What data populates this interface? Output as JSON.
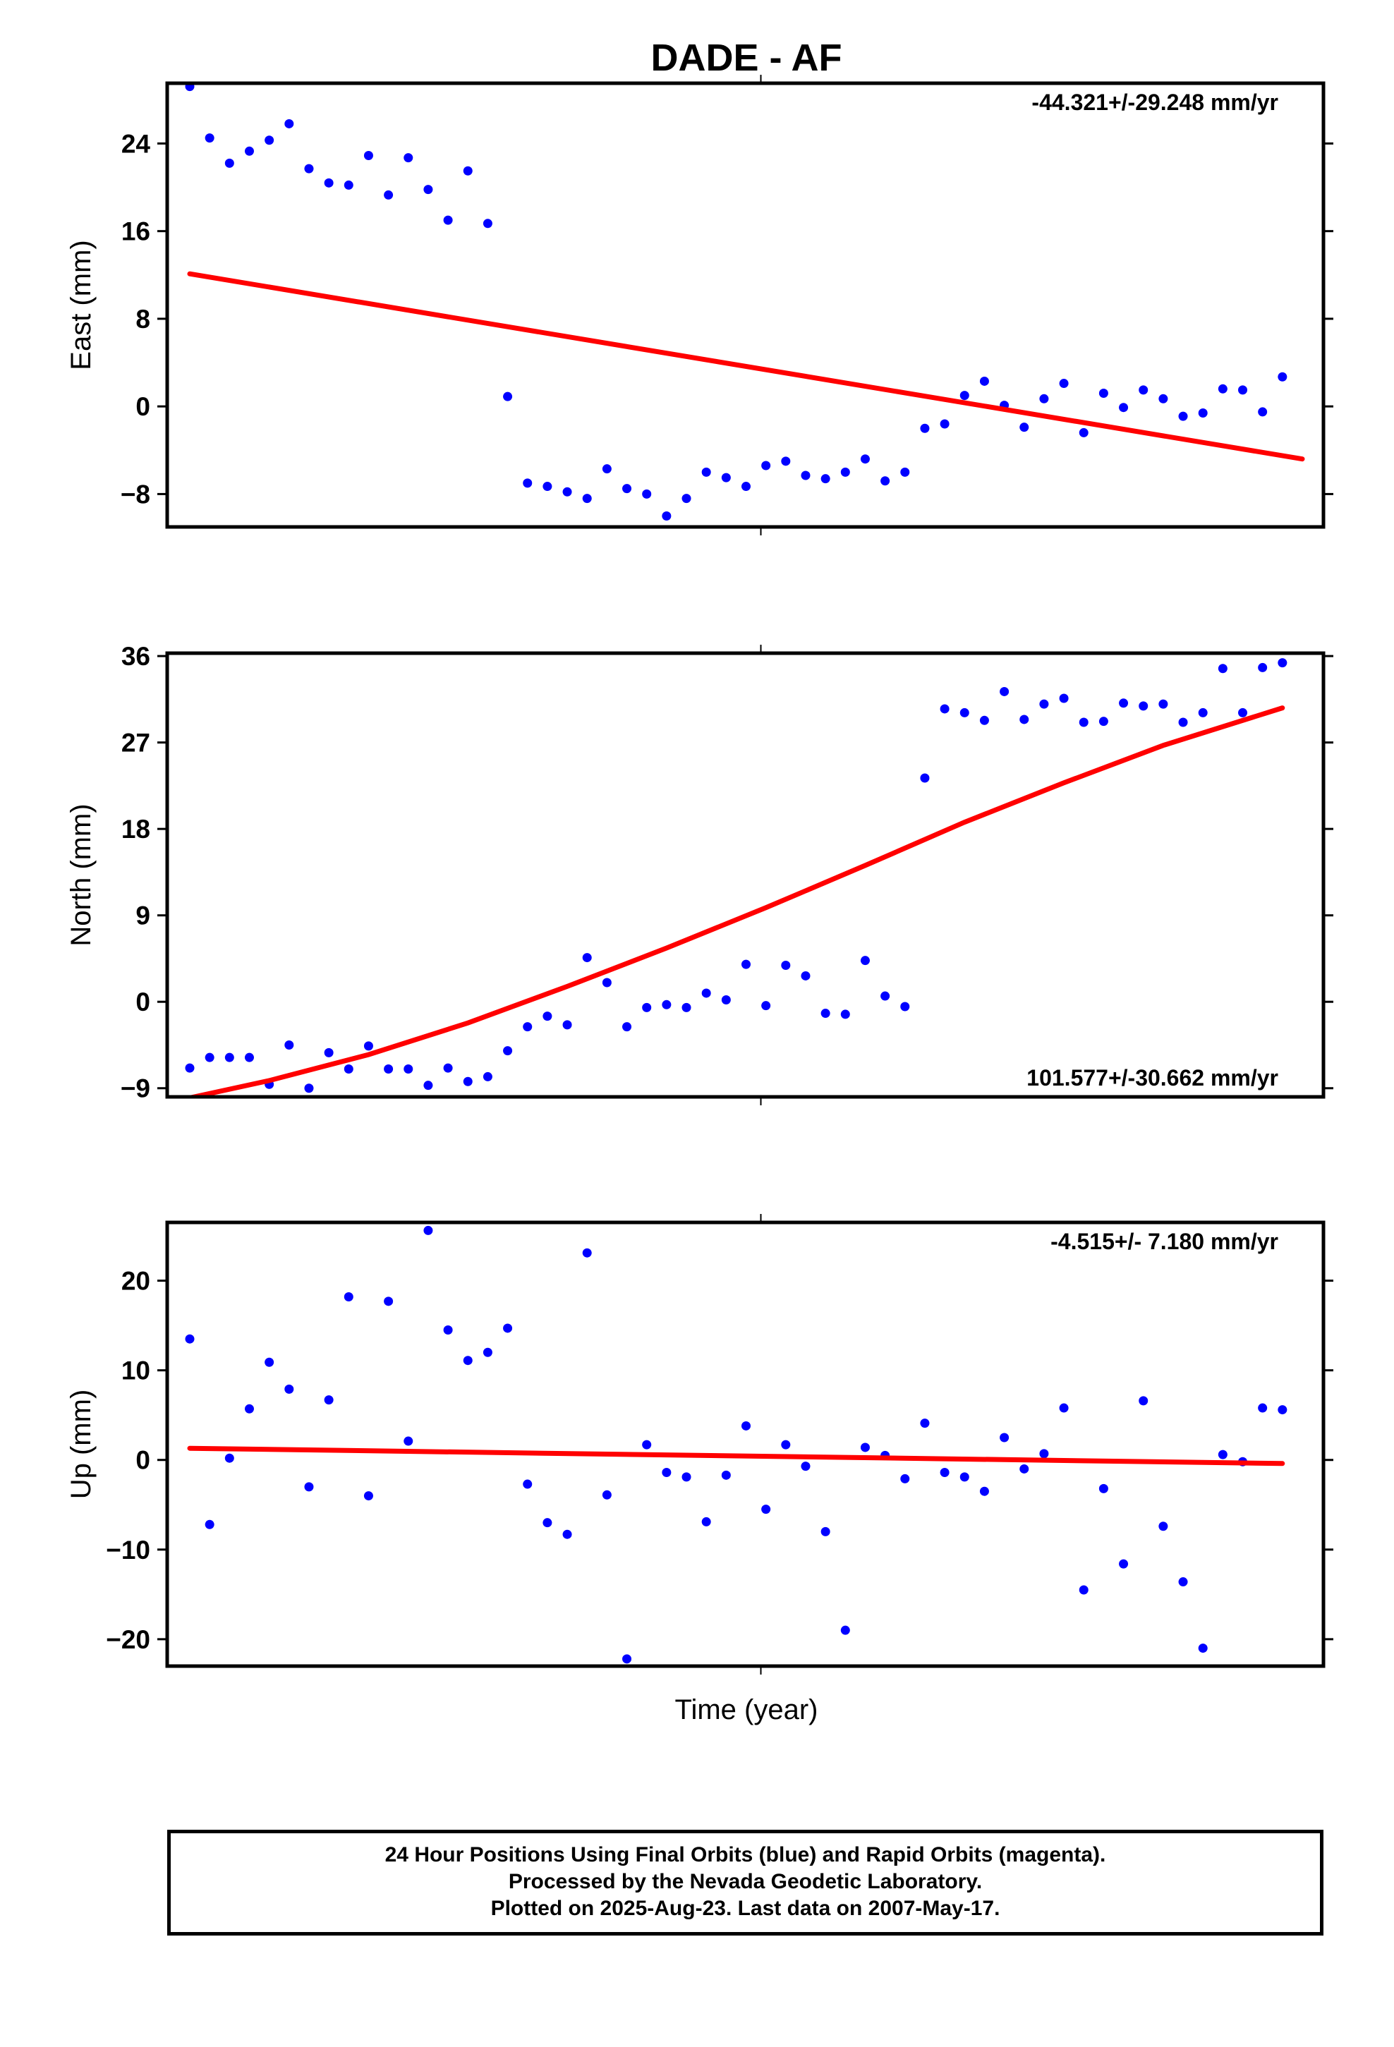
{
  "title": "DADE - AF",
  "x_axis_label": "Time (year)",
  "colors": {
    "points": "#0000ff",
    "fit": "#ff0000",
    "frame": "#000000"
  },
  "footer": {
    "line1": "24 Hour Positions Using Final Orbits (blue) and Rapid Orbits (magenta).",
    "line2": "Processed by the Nevada Geodetic Laboratory.",
    "line3": "Plotted on 2025-Aug-23. Last data on 2007-May-17."
  },
  "chart_data": [
    {
      "type": "scatter",
      "ylabel": "East (mm)",
      "rate_label": "-44.321+/-29.248 mm/yr",
      "rate_position": "top-right",
      "ylim": [
        -11,
        29.5
      ],
      "yticks": [
        -8,
        0,
        8,
        16,
        24
      ],
      "ytick_labels": [
        "−8",
        "0",
        "8",
        "16",
        "24"
      ],
      "x_index": [
        1,
        57
      ],
      "points": [
        [
          1,
          29.2
        ],
        [
          2,
          24.5
        ],
        [
          3,
          22.2
        ],
        [
          4,
          23.3
        ],
        [
          5,
          24.3
        ],
        [
          6,
          25.8
        ],
        [
          7,
          21.7
        ],
        [
          8,
          20.4
        ],
        [
          9,
          20.2
        ],
        [
          10,
          22.9
        ],
        [
          11,
          19.3
        ],
        [
          12,
          22.7
        ],
        [
          13,
          19.8
        ],
        [
          14,
          17
        ],
        [
          15,
          21.5
        ],
        [
          16,
          16.7
        ],
        [
          17,
          0.9
        ],
        [
          18,
          -7
        ],
        [
          19,
          -7.3
        ],
        [
          20,
          -7.8
        ],
        [
          21,
          -8.4
        ],
        [
          22,
          -5.7
        ],
        [
          23,
          -7.5
        ],
        [
          24,
          -8
        ],
        [
          25,
          -10
        ],
        [
          26,
          -8.4
        ],
        [
          27,
          -6
        ],
        [
          28,
          -6.5
        ],
        [
          29,
          -7.3
        ],
        [
          30,
          -5.4
        ],
        [
          31,
          -5
        ],
        [
          32,
          -6.3
        ],
        [
          33,
          -6.6
        ],
        [
          34,
          -6
        ],
        [
          35,
          -4.8
        ],
        [
          36,
          -6.8
        ],
        [
          37,
          -6
        ],
        [
          38,
          -2
        ],
        [
          39,
          -1.6
        ],
        [
          40,
          1
        ],
        [
          41,
          2.3
        ],
        [
          42,
          0.1
        ],
        [
          43,
          -1.9
        ],
        [
          44,
          0.7
        ],
        [
          45,
          2.1
        ],
        [
          46,
          -2.4
        ],
        [
          47,
          1.2
        ],
        [
          48,
          -0.1
        ],
        [
          49,
          1.5
        ],
        [
          50,
          0.7
        ],
        [
          51,
          -0.9
        ],
        [
          52,
          -0.6
        ],
        [
          53,
          1.6
        ],
        [
          54,
          1.5
        ],
        [
          55,
          -0.5
        ],
        [
          56,
          2.7
        ]
      ],
      "fit_line": [
        [
          1,
          12.1
        ],
        [
          57,
          -4.8
        ]
      ]
    },
    {
      "type": "scatter",
      "ylabel": "North (mm)",
      "rate_label": "101.577+/-30.662 mm/yr",
      "rate_position": "bottom-right",
      "ylim": [
        -9.9,
        36.3
      ],
      "yticks": [
        -9,
        0,
        9,
        18,
        27,
        36
      ],
      "ytick_labels": [
        "−9",
        "0",
        "9",
        "18",
        "27",
        "36"
      ],
      "x_index": [
        1,
        57
      ],
      "points": [
        [
          1,
          -6.9
        ],
        [
          2,
          -5.8
        ],
        [
          3,
          -5.8
        ],
        [
          4,
          -5.8
        ],
        [
          5,
          -8.6
        ],
        [
          6,
          -4.5
        ],
        [
          7,
          -9
        ],
        [
          8,
          -5.3
        ],
        [
          9,
          -7
        ],
        [
          10,
          -4.6
        ],
        [
          11,
          -7
        ],
        [
          12,
          -7
        ],
        [
          13,
          -8.7
        ],
        [
          14,
          -6.9
        ],
        [
          15,
          -8.3
        ],
        [
          16,
          -7.8
        ],
        [
          17,
          -5.1
        ],
        [
          18,
          -2.6
        ],
        [
          19,
          -1.5
        ],
        [
          20,
          -2.4
        ],
        [
          21,
          4.6
        ],
        [
          22,
          2
        ],
        [
          23,
          -2.6
        ],
        [
          24,
          -0.6
        ],
        [
          25,
          -0.3
        ],
        [
          26,
          -0.6
        ],
        [
          27,
          0.9
        ],
        [
          28,
          0.2
        ],
        [
          29,
          3.9
        ],
        [
          30,
          -0.4
        ],
        [
          31,
          3.8
        ],
        [
          32,
          2.7
        ],
        [
          33,
          -1.2
        ],
        [
          34,
          -1.3
        ],
        [
          35,
          4.3
        ],
        [
          36,
          0.6
        ],
        [
          37,
          -0.5
        ],
        [
          38,
          23.3
        ],
        [
          39,
          30.5
        ],
        [
          40,
          30.1
        ],
        [
          41,
          29.3
        ],
        [
          42,
          32.3
        ],
        [
          43,
          29.4
        ],
        [
          44,
          31
        ],
        [
          45,
          31.6
        ],
        [
          46,
          29.1
        ],
        [
          47,
          29.2
        ],
        [
          48,
          31.1
        ],
        [
          49,
          30.8
        ],
        [
          50,
          31
        ],
        [
          51,
          29.1
        ],
        [
          52,
          30.1
        ],
        [
          53,
          34.7
        ],
        [
          54,
          30.1
        ],
        [
          55,
          34.8
        ],
        [
          56,
          35.3
        ]
      ],
      "fit_line": [
        [
          1,
          -10
        ],
        [
          5,
          -8.2
        ],
        [
          10,
          -5.5
        ],
        [
          15,
          -2.2
        ],
        [
          20,
          1.6
        ],
        [
          25,
          5.6
        ],
        [
          30,
          9.8
        ],
        [
          35,
          14.2
        ],
        [
          40,
          18.7
        ],
        [
          45,
          22.8
        ],
        [
          50,
          26.7
        ],
        [
          56,
          30.6
        ]
      ]
    },
    {
      "type": "scatter",
      "ylabel": "Up (mm)",
      "rate_label": "-4.515+/- 7.180 mm/yr",
      "rate_position": "top-right",
      "ylim": [
        -23,
        26.5
      ],
      "yticks": [
        -20,
        -10,
        0,
        10,
        20
      ],
      "ytick_labels": [
        "−20",
        "−10",
        "0",
        "10",
        "20"
      ],
      "x_index": [
        1,
        57
      ],
      "points": [
        [
          1,
          13.5
        ],
        [
          2,
          -7.2
        ],
        [
          3,
          0.2
        ],
        [
          4,
          5.7
        ],
        [
          5,
          10.9
        ],
        [
          6,
          7.9
        ],
        [
          7,
          -3
        ],
        [
          8,
          6.7
        ],
        [
          9,
          18.2
        ],
        [
          10,
          -4
        ],
        [
          11,
          17.7
        ],
        [
          12,
          2.1
        ],
        [
          13,
          25.6
        ],
        [
          14,
          14.5
        ],
        [
          15,
          11.1
        ],
        [
          16,
          12
        ],
        [
          17,
          14.7
        ],
        [
          18,
          -2.7
        ],
        [
          19,
          -7
        ],
        [
          20,
          -8.3
        ],
        [
          21,
          23.1
        ],
        [
          22,
          -3.9
        ],
        [
          23,
          -22.2
        ],
        [
          24,
          1.7
        ],
        [
          25,
          -1.4
        ],
        [
          26,
          -1.9
        ],
        [
          27,
          -6.9
        ],
        [
          28,
          -1.7
        ],
        [
          29,
          3.8
        ],
        [
          30,
          -5.5
        ],
        [
          31,
          1.7
        ],
        [
          32,
          -0.7
        ],
        [
          33,
          -8
        ],
        [
          34,
          -19
        ],
        [
          35,
          1.4
        ],
        [
          36,
          0.5
        ],
        [
          37,
          -2.1
        ],
        [
          38,
          4.1
        ],
        [
          39,
          -1.4
        ],
        [
          40,
          -1.9
        ],
        [
          41,
          -3.5
        ],
        [
          42,
          2.5
        ],
        [
          43,
          -1
        ],
        [
          44,
          0.7
        ],
        [
          45,
          5.8
        ],
        [
          46,
          -14.5
        ],
        [
          47,
          -3.2
        ],
        [
          48,
          -11.6
        ],
        [
          49,
          6.6
        ],
        [
          50,
          -7.4
        ],
        [
          51,
          -13.6
        ],
        [
          52,
          -21
        ],
        [
          53,
          0.6
        ],
        [
          54,
          -0.2
        ],
        [
          55,
          5.8
        ],
        [
          56,
          5.6
        ]
      ],
      "fit_line": [
        [
          1,
          1.3
        ],
        [
          56,
          -0.4
        ]
      ]
    }
  ]
}
